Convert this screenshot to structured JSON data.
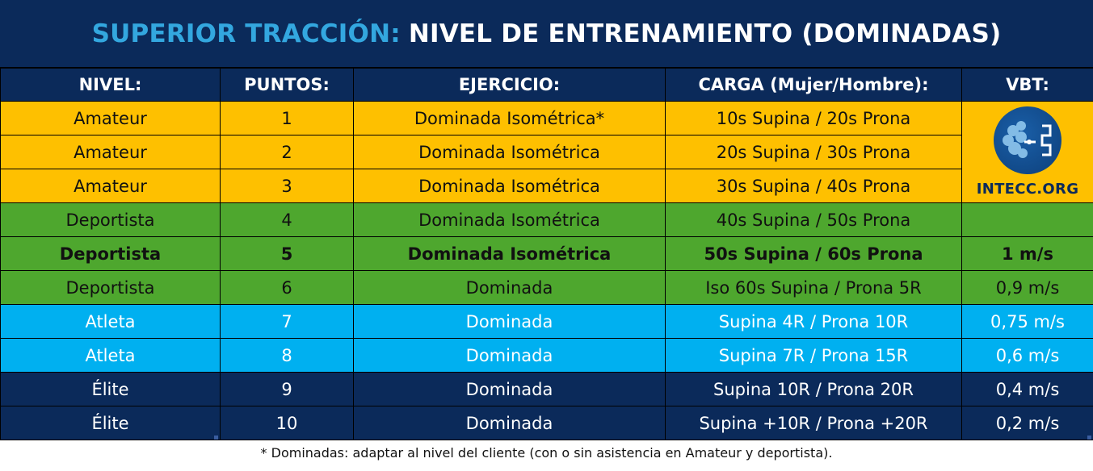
{
  "title": {
    "accent": "SUPERIOR TRACCIÓN:",
    "main": "NIVEL DE ENTRENAMIENTO (DOMINADAS)"
  },
  "headers": [
    "NIVEL:",
    "PUNTOS:",
    "EJERCICIO:",
    "CARGA (Mujer/Hombre):",
    "VBT:"
  ],
  "rows": [
    {
      "nivel": "Amateur",
      "puntos": "1",
      "ejercicio": "Dominada Isométrica*",
      "carga": "10s Supina / 20s Prona",
      "vbt": ""
    },
    {
      "nivel": "Amateur",
      "puntos": "2",
      "ejercicio": "Dominada Isométrica",
      "carga": "20s Supina / 30s Prona",
      "vbt": ""
    },
    {
      "nivel": "Amateur",
      "puntos": "3",
      "ejercicio": "Dominada Isométrica",
      "carga": "30s Supina / 40s Prona",
      "vbt": ""
    },
    {
      "nivel": "Deportista",
      "puntos": "4",
      "ejercicio": "Dominada Isométrica",
      "carga": "40s Supina / 50s Prona",
      "vbt": ""
    },
    {
      "nivel": "Deportista",
      "puntos": "5",
      "ejercicio": "Dominada Isométrica",
      "carga": "50s Supina / 60s Prona",
      "vbt": "1 m/s"
    },
    {
      "nivel": "Deportista",
      "puntos": "6",
      "ejercicio": "Dominada",
      "carga": "Iso 60s Supina / Prona 5R",
      "vbt": "0,9 m/s"
    },
    {
      "nivel": "Atleta",
      "puntos": "7",
      "ejercicio": "Dominada",
      "carga": "Supina 4R / Prona 10R",
      "vbt": "0,75 m/s"
    },
    {
      "nivel": "Atleta",
      "puntos": "8",
      "ejercicio": "Dominada",
      "carga": "Supina 7R / Prona 15R",
      "vbt": "0,6 m/s"
    },
    {
      "nivel": "Élite",
      "puntos": "9",
      "ejercicio": "Dominada",
      "carga": "Supina 10R / Prona 20R",
      "vbt": "0,4 m/s"
    },
    {
      "nivel": "Élite",
      "puntos": "10",
      "ejercicio": "Dominada",
      "carga": "Supina +10R / Prona +20R",
      "vbt": "0,2 m/s"
    }
  ],
  "logo": {
    "text": "INTECC.ORG",
    "icon": "brain-logo-icon"
  },
  "footnote": "* Dominadas: adaptar al nivel del cliente (con o sin asistencia en Amateur y deportista).",
  "colors": {
    "navy": "#0b2a5a",
    "accent_blue": "#33a7df",
    "amateur": "#fec000",
    "deportista": "#4ea72e",
    "atleta": "#00b0f0",
    "elite": "#0b2a5a"
  }
}
